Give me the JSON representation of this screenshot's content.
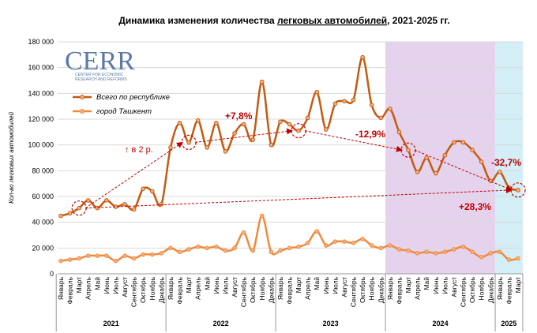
{
  "chart_data": {
    "type": "line",
    "title_parts": [
      "Динамика изменения количества ",
      "легковых автомобилей",
      ", 2021-2025 гг."
    ],
    "y_label": "Кол-во легковых автомобилей",
    "logo": {
      "name": "CERR",
      "subtitle": [
        "CENTER FOR ECONOMIC",
        "RESEARCH AND REFORMS"
      ]
    },
    "categories": [
      "Январь",
      "Февраль",
      "Март",
      "Апрель",
      "Май",
      "Июнь",
      "Июль",
      "Август",
      "Сентябрь",
      "Октябрь",
      "Ноябрь",
      "Декабрь",
      "Январь",
      "Февраль",
      "Март",
      "Апрель",
      "Май",
      "Июнь",
      "Июль",
      "Август",
      "Сентябрь",
      "Октябрь",
      "Ноябрь",
      "Декабрь",
      "Январь",
      "Февраль",
      "Март",
      "Апрель",
      "Май",
      "Июнь",
      "Июль",
      "Август",
      "Сентябрь",
      "Октябрь",
      "Ноябрь",
      "Декабрь",
      "Январь",
      "Февраль",
      "Март",
      "Апрель",
      "Май",
      "Июнь",
      "Июль",
      "Август",
      "Сентябрь",
      "Октябрь",
      "Ноябрь",
      "Декабрь",
      "Январь",
      "Февраль",
      "Март"
    ],
    "years": [
      "2021",
      "2022",
      "2023",
      "2024",
      "2025"
    ],
    "series": [
      {
        "name": "Всего по республике",
        "color": "#c55a11",
        "values": [
          45000,
          47000,
          51000,
          57000,
          51000,
          57000,
          52000,
          54000,
          50000,
          66000,
          64000,
          54000,
          98000,
          117000,
          102000,
          119000,
          98000,
          117000,
          95000,
          109000,
          116000,
          104000,
          149000,
          100000,
          118000,
          116000,
          111000,
          121000,
          141000,
          112000,
          132000,
          134000,
          135000,
          168000,
          131000,
          121000,
          128000,
          110000,
          96000,
          79000,
          90000,
          78000,
          92000,
          102000,
          102000,
          96000,
          87000,
          72000,
          79000,
          67000,
          65000
        ]
      },
      {
        "name": "город Ташкент",
        "color": "#f08a3c",
        "values": [
          10000,
          11000,
          12000,
          14000,
          14000,
          14000,
          10000,
          14000,
          12000,
          15000,
          15000,
          16000,
          20000,
          17000,
          19000,
          21000,
          20000,
          21000,
          18000,
          20000,
          32000,
          18000,
          45000,
          17000,
          18000,
          20000,
          21000,
          24000,
          33000,
          22000,
          25000,
          25000,
          24000,
          27000,
          22000,
          20000,
          22000,
          19000,
          18000,
          16000,
          17000,
          16000,
          17000,
          19000,
          21000,
          17000,
          13000,
          16000,
          17000,
          11000,
          12000
        ]
      }
    ],
    "ylim": [
      0,
      180000
    ],
    "yticks": [
      {
        "value": 0,
        "label": "0"
      },
      {
        "value": 20000,
        "label": "20 000"
      },
      {
        "value": 40000,
        "label": "40 000"
      },
      {
        "value": 60000,
        "label": "60 000"
      },
      {
        "value": 80000,
        "label": "80 000"
      },
      {
        "value": 100000,
        "label": "100 000"
      },
      {
        "value": 120000,
        "label": "120 000"
      },
      {
        "value": 140000,
        "label": "140 000"
      },
      {
        "value": 160000,
        "label": "160 000"
      },
      {
        "value": 180000,
        "label": "180 000"
      }
    ],
    "grid": true,
    "legend": "upper left",
    "highlight_colors": [
      "#e5d3ee",
      "#d3eef6"
    ],
    "annotations": [
      "↑ в 2 р.",
      "+7,8%",
      "-12,9%",
      "-32,7%",
      "+28,3%"
    ]
  }
}
